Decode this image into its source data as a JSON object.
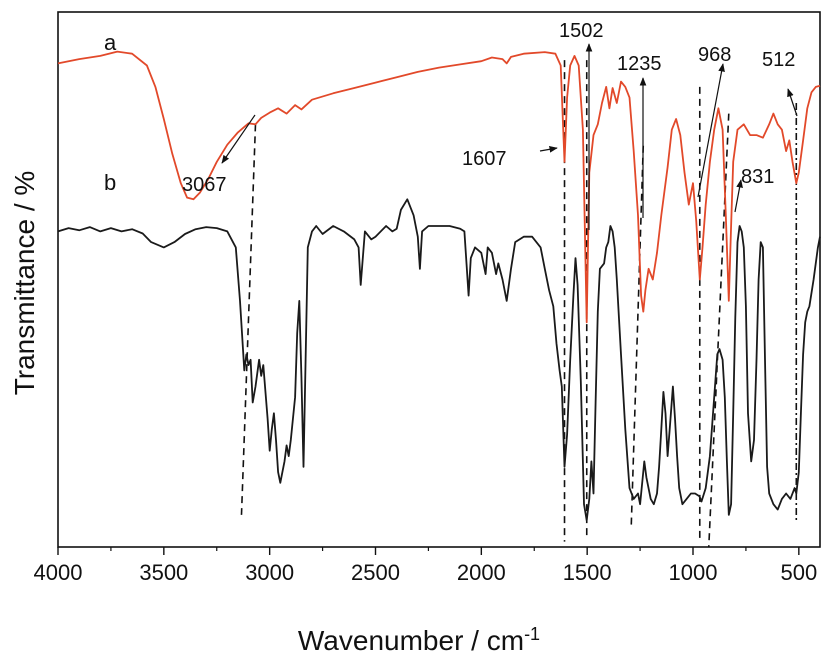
{
  "chart_data": {
    "type": "line",
    "title": "",
    "xlabel": "Wavenumber / cm",
    "xlabel_superscript": "-1",
    "ylabel": "Transmittance / %",
    "xlim": [
      4000,
      400
    ],
    "x_reversed": true,
    "x_ticks": [
      4000,
      3500,
      3000,
      2500,
      2000,
      1500,
      1000,
      500
    ],
    "y_ticks_shown": false,
    "grid": false,
    "legend": "none",
    "series": [
      {
        "name": "a",
        "color": "#e2492a",
        "points": [
          [
            4000,
            0.904
          ],
          [
            3900,
            0.912
          ],
          [
            3800,
            0.918
          ],
          [
            3720,
            0.926
          ],
          [
            3650,
            0.922
          ],
          [
            3580,
            0.9
          ],
          [
            3540,
            0.86
          ],
          [
            3500,
            0.8
          ],
          [
            3460,
            0.735
          ],
          [
            3420,
            0.68
          ],
          [
            3390,
            0.653
          ],
          [
            3360,
            0.65
          ],
          [
            3330,
            0.662
          ],
          [
            3290,
            0.688
          ],
          [
            3250,
            0.72
          ],
          [
            3200,
            0.752
          ],
          [
            3150,
            0.775
          ],
          [
            3100,
            0.792
          ],
          [
            3067,
            0.79
          ],
          [
            3040,
            0.802
          ],
          [
            3000,
            0.812
          ],
          [
            2960,
            0.82
          ],
          [
            2920,
            0.81
          ],
          [
            2880,
            0.826
          ],
          [
            2850,
            0.818
          ],
          [
            2800,
            0.836
          ],
          [
            2700,
            0.848
          ],
          [
            2600,
            0.858
          ],
          [
            2500,
            0.868
          ],
          [
            2400,
            0.878
          ],
          [
            2300,
            0.888
          ],
          [
            2200,
            0.896
          ],
          [
            2100,
            0.902
          ],
          [
            2000,
            0.908
          ],
          [
            1950,
            0.915
          ],
          [
            1900,
            0.912
          ],
          [
            1880,
            0.904
          ],
          [
            1860,
            0.916
          ],
          [
            1800,
            0.922
          ],
          [
            1700,
            0.925
          ],
          [
            1650,
            0.922
          ],
          [
            1625,
            0.9
          ],
          [
            1607,
            0.72
          ],
          [
            1595,
            0.84
          ],
          [
            1580,
            0.9
          ],
          [
            1560,
            0.918
          ],
          [
            1540,
            0.9
          ],
          [
            1520,
            0.78
          ],
          [
            1502,
            0.42
          ],
          [
            1490,
            0.7
          ],
          [
            1470,
            0.77
          ],
          [
            1450,
            0.79
          ],
          [
            1430,
            0.83
          ],
          [
            1410,
            0.86
          ],
          [
            1395,
            0.82
          ],
          [
            1380,
            0.858
          ],
          [
            1360,
            0.83
          ],
          [
            1340,
            0.87
          ],
          [
            1320,
            0.86
          ],
          [
            1300,
            0.84
          ],
          [
            1280,
            0.74
          ],
          [
            1260,
            0.62
          ],
          [
            1245,
            0.47
          ],
          [
            1235,
            0.44
          ],
          [
            1225,
            0.48
          ],
          [
            1210,
            0.52
          ],
          [
            1190,
            0.5
          ],
          [
            1170,
            0.55
          ],
          [
            1150,
            0.62
          ],
          [
            1120,
            0.71
          ],
          [
            1100,
            0.78
          ],
          [
            1080,
            0.8
          ],
          [
            1060,
            0.77
          ],
          [
            1040,
            0.7
          ],
          [
            1020,
            0.64
          ],
          [
            1000,
            0.68
          ],
          [
            985,
            0.61
          ],
          [
            968,
            0.5
          ],
          [
            955,
            0.56
          ],
          [
            940,
            0.64
          ],
          [
            920,
            0.72
          ],
          [
            900,
            0.78
          ],
          [
            880,
            0.82
          ],
          [
            860,
            0.78
          ],
          [
            845,
            0.62
          ],
          [
            831,
            0.46
          ],
          [
            820,
            0.6
          ],
          [
            810,
            0.72
          ],
          [
            790,
            0.78
          ],
          [
            760,
            0.79
          ],
          [
            730,
            0.77
          ],
          [
            700,
            0.77
          ],
          [
            670,
            0.765
          ],
          [
            640,
            0.79
          ],
          [
            620,
            0.81
          ],
          [
            600,
            0.79
          ],
          [
            580,
            0.78
          ],
          [
            560,
            0.74
          ],
          [
            545,
            0.76
          ],
          [
            530,
            0.72
          ],
          [
            512,
            0.68
          ],
          [
            500,
            0.7
          ],
          [
            480,
            0.76
          ],
          [
            460,
            0.82
          ],
          [
            440,
            0.85
          ],
          [
            420,
            0.86
          ],
          [
            400,
            0.862
          ]
        ]
      },
      {
        "name": "b",
        "color": "#1a1a1a",
        "points": [
          [
            4000,
            0.59
          ],
          [
            3950,
            0.596
          ],
          [
            3900,
            0.592
          ],
          [
            3850,
            0.598
          ],
          [
            3800,
            0.59
          ],
          [
            3750,
            0.596
          ],
          [
            3700,
            0.59
          ],
          [
            3650,
            0.594
          ],
          [
            3600,
            0.586
          ],
          [
            3560,
            0.57
          ],
          [
            3500,
            0.56
          ],
          [
            3450,
            0.57
          ],
          [
            3400,
            0.585
          ],
          [
            3350,
            0.594
          ],
          [
            3300,
            0.598
          ],
          [
            3250,
            0.596
          ],
          [
            3200,
            0.59
          ],
          [
            3160,
            0.56
          ],
          [
            3140,
            0.46
          ],
          [
            3120,
            0.33
          ],
          [
            3110,
            0.36
          ],
          [
            3100,
            0.34
          ],
          [
            3090,
            0.35
          ],
          [
            3080,
            0.27
          ],
          [
            3067,
            0.3
          ],
          [
            3050,
            0.35
          ],
          [
            3040,
            0.32
          ],
          [
            3030,
            0.34
          ],
          [
            3010,
            0.24
          ],
          [
            3000,
            0.18
          ],
          [
            2990,
            0.22
          ],
          [
            2980,
            0.25
          ],
          [
            2970,
            0.2
          ],
          [
            2960,
            0.14
          ],
          [
            2950,
            0.12
          ],
          [
            2940,
            0.14
          ],
          [
            2930,
            0.16
          ],
          [
            2920,
            0.19
          ],
          [
            2910,
            0.17
          ],
          [
            2900,
            0.2
          ],
          [
            2880,
            0.28
          ],
          [
            2870,
            0.4
          ],
          [
            2860,
            0.46
          ],
          [
            2850,
            0.32
          ],
          [
            2840,
            0.15
          ],
          [
            2830,
            0.35
          ],
          [
            2820,
            0.56
          ],
          [
            2800,
            0.59
          ],
          [
            2780,
            0.6
          ],
          [
            2750,
            0.585
          ],
          [
            2700,
            0.6
          ],
          [
            2650,
            0.59
          ],
          [
            2600,
            0.575
          ],
          [
            2580,
            0.56
          ],
          [
            2570,
            0.49
          ],
          [
            2550,
            0.59
          ],
          [
            2520,
            0.575
          ],
          [
            2500,
            0.58
          ],
          [
            2450,
            0.6
          ],
          [
            2420,
            0.59
          ],
          [
            2400,
            0.595
          ],
          [
            2380,
            0.63
          ],
          [
            2350,
            0.65
          ],
          [
            2320,
            0.62
          ],
          [
            2300,
            0.58
          ],
          [
            2290,
            0.52
          ],
          [
            2280,
            0.59
          ],
          [
            2250,
            0.6
          ],
          [
            2200,
            0.6
          ],
          [
            2150,
            0.6
          ],
          [
            2100,
            0.595
          ],
          [
            2080,
            0.59
          ],
          [
            2070,
            0.53
          ],
          [
            2060,
            0.47
          ],
          [
            2050,
            0.54
          ],
          [
            2030,
            0.56
          ],
          [
            2000,
            0.55
          ],
          [
            1980,
            0.51
          ],
          [
            1970,
            0.56
          ],
          [
            1950,
            0.55
          ],
          [
            1930,
            0.51
          ],
          [
            1920,
            0.53
          ],
          [
            1900,
            0.5
          ],
          [
            1880,
            0.46
          ],
          [
            1860,
            0.52
          ],
          [
            1840,
            0.57
          ],
          [
            1800,
            0.58
          ],
          [
            1760,
            0.58
          ],
          [
            1720,
            0.56
          ],
          [
            1700,
            0.52
          ],
          [
            1680,
            0.48
          ],
          [
            1660,
            0.45
          ],
          [
            1645,
            0.38
          ],
          [
            1630,
            0.33
          ],
          [
            1620,
            0.3
          ],
          [
            1607,
            0.15
          ],
          [
            1595,
            0.21
          ],
          [
            1580,
            0.35
          ],
          [
            1565,
            0.47
          ],
          [
            1555,
            0.54
          ],
          [
            1545,
            0.49
          ],
          [
            1530,
            0.31
          ],
          [
            1515,
            0.08
          ],
          [
            1502,
            0.05
          ],
          [
            1490,
            0.09
          ],
          [
            1480,
            0.16
          ],
          [
            1470,
            0.1
          ],
          [
            1460,
            0.27
          ],
          [
            1450,
            0.44
          ],
          [
            1440,
            0.52
          ],
          [
            1420,
            0.53
          ],
          [
            1410,
            0.56
          ],
          [
            1400,
            0.57
          ],
          [
            1390,
            0.6
          ],
          [
            1380,
            0.59
          ],
          [
            1370,
            0.56
          ],
          [
            1360,
            0.5
          ],
          [
            1340,
            0.36
          ],
          [
            1320,
            0.22
          ],
          [
            1300,
            0.11
          ],
          [
            1280,
            0.09
          ],
          [
            1260,
            0.1
          ],
          [
            1250,
            0.08
          ],
          [
            1240,
            0.12
          ],
          [
            1230,
            0.16
          ],
          [
            1220,
            0.13
          ],
          [
            1200,
            0.09
          ],
          [
            1185,
            0.08
          ],
          [
            1170,
            0.1
          ],
          [
            1160,
            0.15
          ],
          [
            1150,
            0.22
          ],
          [
            1140,
            0.29
          ],
          [
            1130,
            0.25
          ],
          [
            1120,
            0.17
          ],
          [
            1110,
            0.22
          ],
          [
            1095,
            0.3
          ],
          [
            1085,
            0.24
          ],
          [
            1075,
            0.17
          ],
          [
            1065,
            0.11
          ],
          [
            1050,
            0.08
          ],
          [
            1030,
            0.09
          ],
          [
            1010,
            0.1
          ],
          [
            990,
            0.1
          ],
          [
            970,
            0.095
          ],
          [
            960,
            0.085
          ],
          [
            940,
            0.11
          ],
          [
            920,
            0.17
          ],
          [
            900,
            0.28
          ],
          [
            885,
            0.36
          ],
          [
            875,
            0.37
          ],
          [
            860,
            0.35
          ],
          [
            850,
            0.28
          ],
          [
            840,
            0.16
          ],
          [
            831,
            0.06
          ],
          [
            820,
            0.08
          ],
          [
            810,
            0.25
          ],
          [
            800,
            0.43
          ],
          [
            790,
            0.57
          ],
          [
            780,
            0.6
          ],
          [
            770,
            0.59
          ],
          [
            760,
            0.56
          ],
          [
            750,
            0.45
          ],
          [
            740,
            0.25
          ],
          [
            725,
            0.16
          ],
          [
            712,
            0.2
          ],
          [
            700,
            0.35
          ],
          [
            690,
            0.5
          ],
          [
            680,
            0.57
          ],
          [
            670,
            0.56
          ],
          [
            660,
            0.35
          ],
          [
            650,
            0.15
          ],
          [
            640,
            0.1
          ],
          [
            620,
            0.08
          ],
          [
            600,
            0.07
          ],
          [
            580,
            0.09
          ],
          [
            560,
            0.1
          ],
          [
            540,
            0.09
          ],
          [
            520,
            0.11
          ],
          [
            512,
            0.1
          ],
          [
            500,
            0.14
          ],
          [
            490,
            0.25
          ],
          [
            480,
            0.36
          ],
          [
            470,
            0.42
          ],
          [
            460,
            0.44
          ],
          [
            450,
            0.45
          ],
          [
            430,
            0.5
          ],
          [
            410,
            0.56
          ],
          [
            400,
            0.58
          ]
        ]
      }
    ],
    "series_labels": [
      "a",
      "b"
    ],
    "annotations": [
      "1502",
      "1235",
      "968",
      "512",
      "1607",
      "3067",
      "831"
    ],
    "reference_lines": [
      3067,
      1607,
      1502,
      1235,
      968,
      831,
      512
    ]
  }
}
